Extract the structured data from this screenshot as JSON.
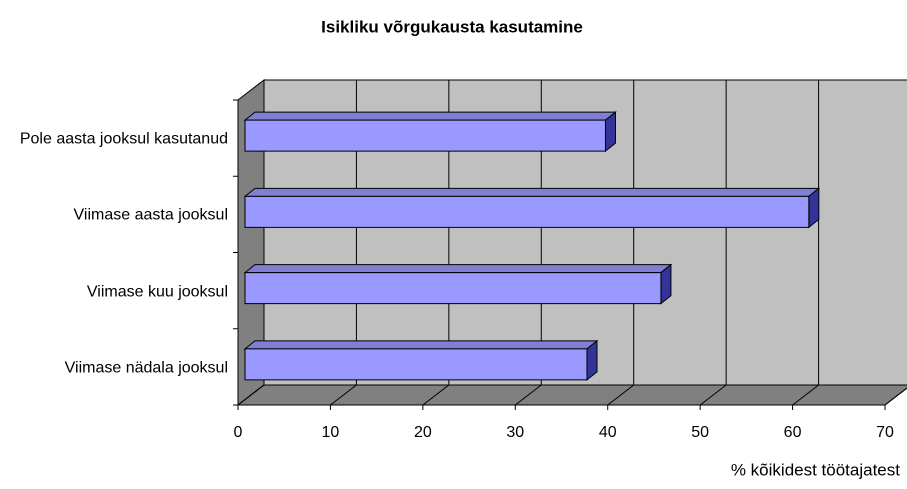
{
  "chart_data": {
    "type": "bar3d_horizontal",
    "title": "Isikliku võrgukausta kasutamine",
    "x_label": "% kõikidest töötajatest",
    "categories": [
      "Pole aasta jooksul kasutanud",
      "Viimase aasta jooksul",
      "Viimase kuu jooksul",
      "Viimase nädala jooksul"
    ],
    "values": [
      39,
      61,
      45,
      37
    ],
    "color": "#9999ff",
    "xlim": [
      0,
      70
    ],
    "xticks": [
      0,
      10,
      20,
      30,
      40,
      50,
      60,
      70
    ],
    "grid": true
  }
}
